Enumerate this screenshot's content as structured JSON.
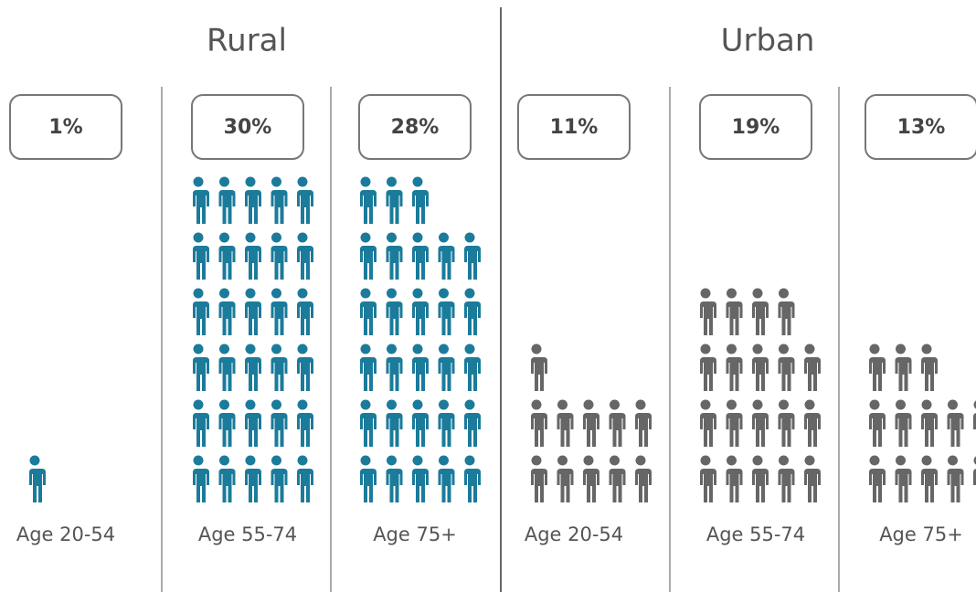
{
  "chart_data": {
    "type": "pictogram",
    "categories": [
      "Age 20-54",
      "Age 55-74",
      "Age 75+"
    ],
    "series": [
      {
        "name": "Rural",
        "color": "#1b7b9b",
        "values": [
          1,
          30,
          28
        ],
        "value_labels": [
          "1%",
          "30%",
          "28%"
        ]
      },
      {
        "name": "Urban",
        "color": "#666666",
        "values": [
          11,
          19,
          13
        ],
        "value_labels": [
          "11%",
          "19%",
          "13%"
        ]
      }
    ]
  }
}
